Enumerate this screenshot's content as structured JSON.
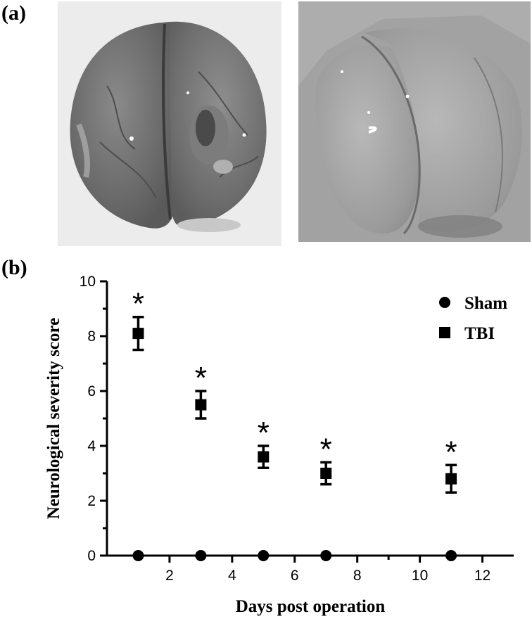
{
  "panels": {
    "a_label": "(a)",
    "b_label": "(b)"
  },
  "chart_data": {
    "type": "scatter",
    "xlabel": "Days post operation",
    "ylabel": "Neurological severity score",
    "xlim": [
      0,
      13
    ],
    "ylim": [
      0,
      10
    ],
    "x_ticks": [
      2,
      4,
      6,
      8,
      10,
      12
    ],
    "y_ticks": [
      0,
      2,
      4,
      6,
      8,
      10
    ],
    "grid": false,
    "legend_position": "top-right",
    "series": [
      {
        "name": "Sham",
        "marker": "circle",
        "color": "#000000",
        "x": [
          1,
          3,
          5,
          7,
          11
        ],
        "y": [
          0,
          0,
          0,
          0,
          0
        ],
        "error": [
          0,
          0,
          0,
          0,
          0
        ]
      },
      {
        "name": "TBI",
        "marker": "square",
        "color": "#000000",
        "x": [
          1,
          3,
          5,
          7,
          11
        ],
        "y": [
          8.1,
          5.5,
          3.6,
          3.0,
          2.8
        ],
        "error": [
          0.6,
          0.5,
          0.4,
          0.4,
          0.5
        ]
      }
    ],
    "annotations": [
      {
        "text": "*",
        "x": 1
      },
      {
        "text": "*",
        "x": 3
      },
      {
        "text": "*",
        "x": 5
      },
      {
        "text": "*",
        "x": 7
      },
      {
        "text": "*",
        "x": 11
      }
    ]
  }
}
